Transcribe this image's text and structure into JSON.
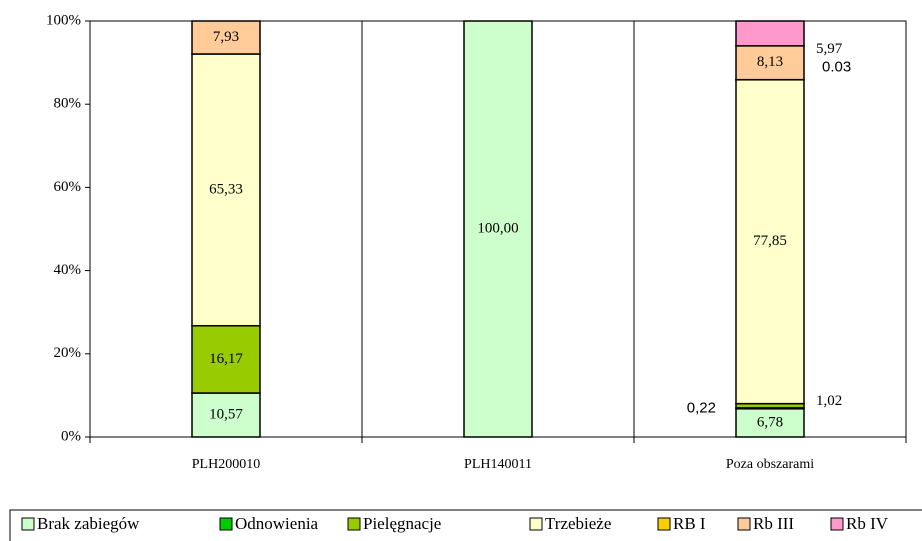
{
  "chart_data": {
    "type": "stacked_bar",
    "categories": [
      "PLH200010",
      "PLH140011",
      "Poza obszarami"
    ],
    "ylim": [
      0,
      100
    ],
    "yticks": [
      {
        "value": 0,
        "label": "0%"
      },
      {
        "value": 20,
        "label": "20%"
      },
      {
        "value": 40,
        "label": "40%"
      },
      {
        "value": 60,
        "label": "60%"
      },
      {
        "value": 80,
        "label": "80%"
      },
      {
        "value": 100,
        "label": "100%"
      }
    ],
    "legend": "bottom",
    "series": [
      {
        "name": "Brak zabiegów",
        "color": "#ccffcc",
        "values": [
          10.57,
          100,
          6.78
        ],
        "value_labels": [
          "10,57",
          "100,00",
          "6,78"
        ]
      },
      {
        "name": "Odnowienia",
        "color": "#00cc00",
        "values": [
          null,
          null,
          0.22
        ],
        "value_labels": [
          null,
          null,
          "0,22"
        ]
      },
      {
        "name": "Pielęgnacje",
        "color": "#99cc00",
        "values": [
          16.17,
          null,
          1.02
        ],
        "value_labels": [
          "16,17",
          null,
          "1,02"
        ]
      },
      {
        "name": "Trzebieże",
        "color": "#ffffcc",
        "values": [
          65.33,
          null,
          77.85
        ],
        "value_labels": [
          "65,33",
          null,
          "77,85"
        ]
      },
      {
        "name": "RB I",
        "color": "#ffcc00",
        "values": [
          null,
          null,
          0.03
        ],
        "value_labels": [
          null,
          null,
          "0.03"
        ]
      },
      {
        "name": "Rb III",
        "color": "#ffcc99",
        "values": [
          7.93,
          null,
          8.13
        ],
        "value_labels": [
          "7,93",
          null,
          "8,13"
        ]
      },
      {
        "name": "Rb IV",
        "color": "#ff99cc",
        "values": [
          null,
          null,
          5.97
        ],
        "value_labels": [
          null,
          null,
          "5,97"
        ]
      }
    ]
  }
}
